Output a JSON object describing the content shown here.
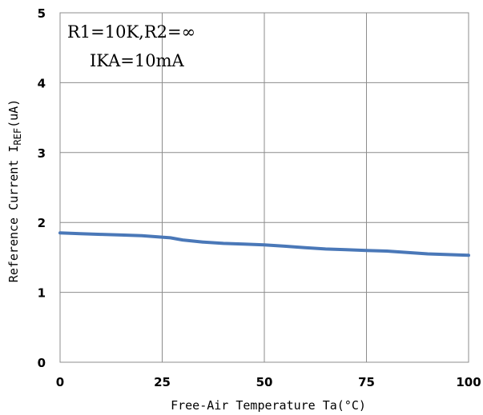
{
  "chart_data": {
    "type": "line",
    "xlabel": "Free-Air Temperature Ta(°C)",
    "ylabel_main": "Reference Current I",
    "ylabel_sub": "REF",
    "ylabel_unit": "(uA)",
    "xlim": [
      0,
      100
    ],
    "ylim": [
      0,
      5
    ],
    "xticks": [
      0,
      25,
      50,
      75,
      100
    ],
    "yticks": [
      0,
      1,
      2,
      3,
      4,
      5
    ],
    "grid": true,
    "annotations": [
      "R1=10K,R2=∞",
      "IKA=10mA"
    ],
    "line_color": "#4a78b8",
    "series": [
      {
        "x": [
          0,
          5,
          10,
          15,
          20,
          25,
          27,
          30,
          35,
          40,
          45,
          50,
          55,
          60,
          65,
          70,
          75,
          80,
          85,
          90,
          95,
          100
        ],
        "y": [
          1.85,
          1.84,
          1.83,
          1.82,
          1.81,
          1.79,
          1.78,
          1.75,
          1.72,
          1.7,
          1.69,
          1.68,
          1.66,
          1.64,
          1.62,
          1.61,
          1.6,
          1.59,
          1.57,
          1.55,
          1.54,
          1.53
        ]
      }
    ]
  }
}
